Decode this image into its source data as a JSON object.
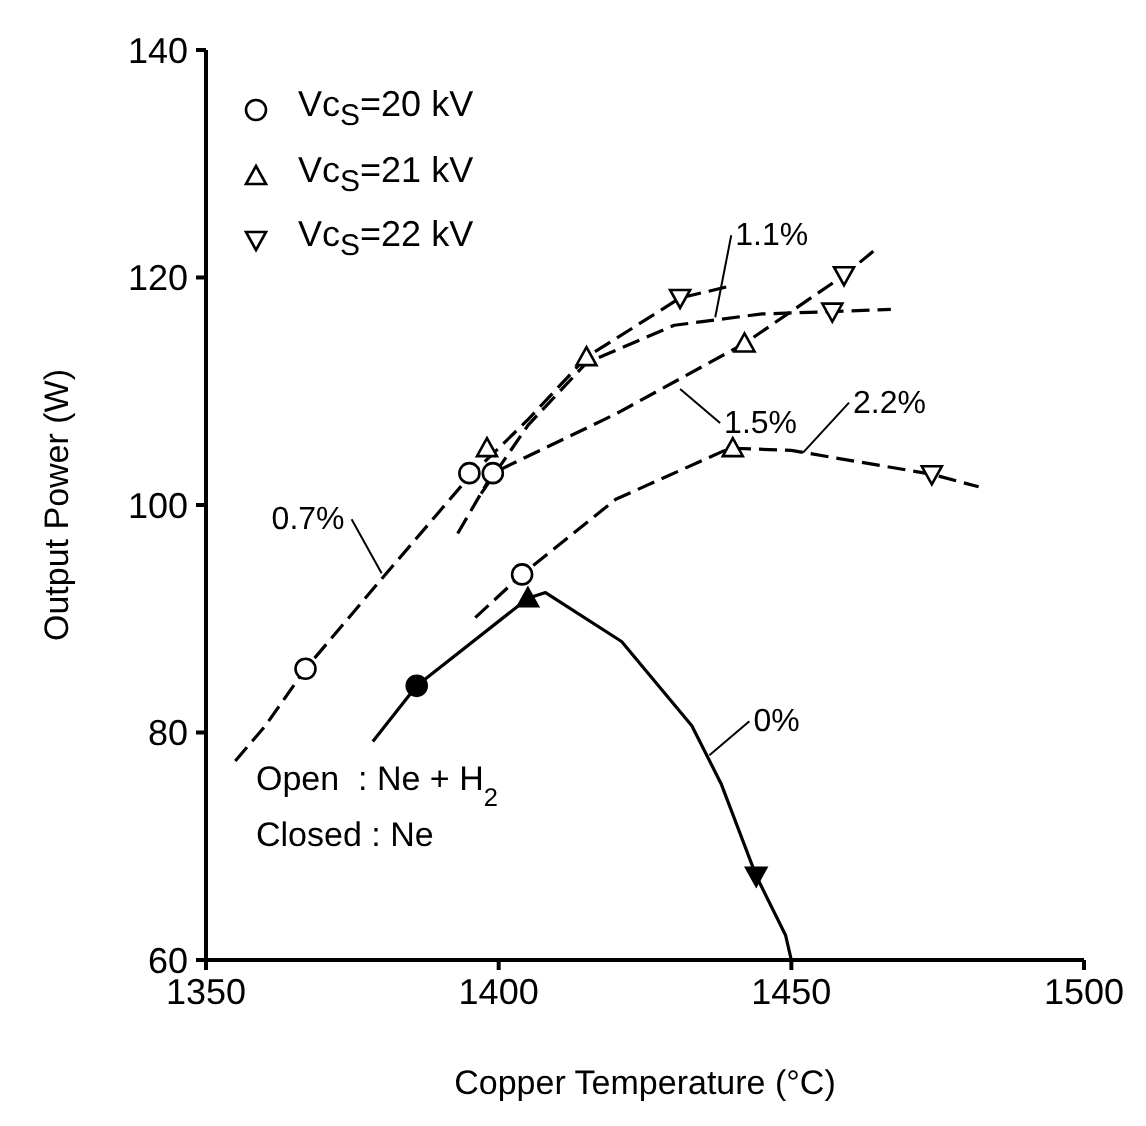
{
  "chart_data": {
    "type": "line",
    "xlabel": "Copper Temperature (°C)",
    "ylabel": "Output Power (W)",
    "xlim": [
      1350,
      1500
    ],
    "xticks": [
      1350,
      1400,
      1450,
      1500
    ],
    "ylim": [
      60,
      140
    ],
    "yticks": [
      60,
      80,
      100,
      120,
      140
    ],
    "grid": false,
    "legend": "top left",
    "marker": "none",
    "series": [
      {
        "color": "#000000",
        "line_style": "dashed",
        "x": [
          1355,
          1360,
          1367,
          1380,
          1395,
          1405,
          1415,
          1431,
          1440
        ],
        "values": [
          77.5,
          80.5,
          85.6,
          93.5,
          102.5,
          107.5,
          113,
          118.2,
          119.3
        ]
      },
      {
        "color": "#000000",
        "line_style": "dashed",
        "x": [
          1397,
          1405,
          1415,
          1430,
          1445,
          1457,
          1467
        ],
        "values": [
          101,
          107,
          112.5,
          115.8,
          116.8,
          117,
          117.2
        ]
      },
      {
        "color": "#000000",
        "line_style": "dashed",
        "x": [
          1393,
          1399,
          1420,
          1442,
          1459,
          1464
        ],
        "values": [
          97.5,
          102.8,
          108,
          114.2,
          120.2,
          122.3
        ]
      },
      {
        "color": "#000000",
        "line_style": "dashed",
        "x": [
          1396,
          1404,
          1420,
          1439.5,
          1450,
          1474,
          1482
        ],
        "values": [
          90.1,
          93.9,
          100.5,
          105,
          104.8,
          102.7,
          101.6
        ]
      },
      {
        "color": "#000000",
        "line_style": "solid",
        "x": [
          1378.5,
          1386,
          1405,
          1408,
          1421,
          1433,
          1438,
          1444,
          1449,
          1450
        ],
        "values": [
          79.2,
          84.1,
          91.8,
          92.3,
          88,
          80.6,
          75.5,
          67.4,
          62.2,
          60
        ]
      },
      {
        "type": "scatter",
        "name": "Vc$_{S}$=20 kV",
        "color": "#000000",
        "marker": "circle",
        "x": [
          1367,
          1395,
          1399,
          1404
        ],
        "values": [
          85.6,
          102.8,
          102.8,
          93.9
        ]
      },
      {
        "type": "scatter",
        "name": "Vc$_{S}$=21 kV",
        "color": "#000000",
        "marker": "triangle",
        "x": [
          1398,
          1415,
          1442,
          1440
        ],
        "values": [
          105,
          113,
          114.2,
          105
        ]
      },
      {
        "type": "scatter",
        "name": "Vc$_{S}$=22 kV",
        "color": "#000000",
        "marker": "triangle-down",
        "x": [
          1431,
          1459,
          1457,
          1474
        ],
        "values": [
          118.2,
          120.2,
          117,
          102.7
        ]
      },
      {
        "type": "scatter",
        "color": "#000000",
        "marker": "circle",
        "x": [
          1386
        ],
        "values": [
          84.1
        ]
      },
      {
        "type": "scatter",
        "color": "#000000",
        "marker": "triangle",
        "x": [
          1405
        ],
        "values": [
          91.8
        ]
      },
      {
        "type": "scatter",
        "color": "#000000",
        "marker": "triangle-down",
        "x": [
          1444
        ],
        "values": [
          67.4
        ]
      }
    ],
    "annotations": [
      {
        "text": "0.7%",
        "x": 1380,
        "y": 94
      },
      {
        "text": "1.1%",
        "x": 1437,
        "y": 116.5
      },
      {
        "text": "1.5%",
        "x": 1431,
        "y": 110.2
      },
      {
        "text": "2.2%",
        "x": 1452,
        "y": 104.6
      },
      {
        "text": "0%",
        "x": 1436,
        "y": 78
      },
      "Open  : Ne + H$_{2}$",
      "Closed : Ne"
    ]
  }
}
